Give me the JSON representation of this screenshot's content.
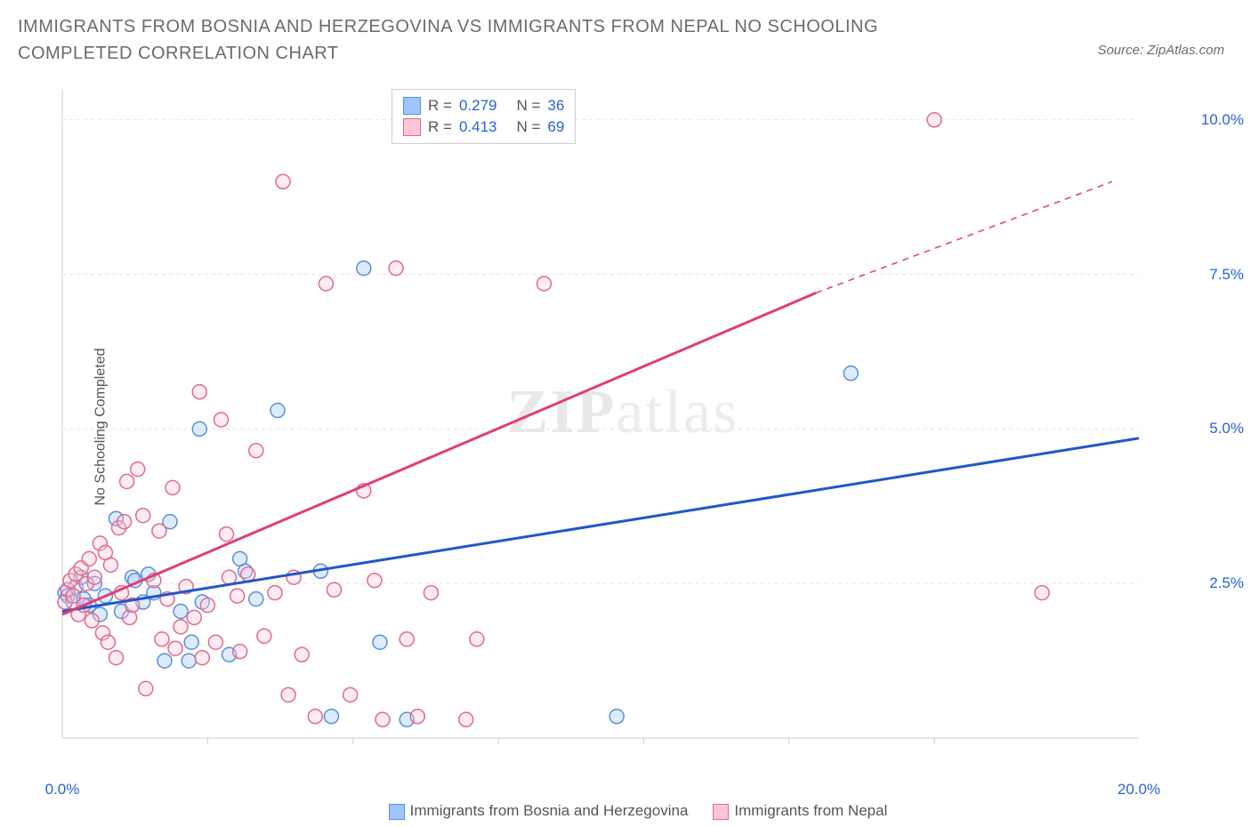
{
  "title": "IMMIGRANTS FROM BOSNIA AND HERZEGOVINA VS IMMIGRANTS FROM NEPAL NO SCHOOLING COMPLETED CORRELATION CHART",
  "source": "Source: ZipAtlas.com",
  "ylabel": "No Schooling Completed",
  "watermark_bold": "ZIP",
  "watermark_thin": "atlas",
  "chart": {
    "type": "scatter",
    "xlim": [
      0,
      20
    ],
    "ylim": [
      0,
      10.5
    ],
    "xticks": [
      {
        "v": 0,
        "l": "0.0%"
      },
      {
        "v": 20,
        "l": "20.0%"
      }
    ],
    "xminor": [
      2.7,
      5.4,
      8.1,
      10.8,
      13.5,
      16.2
    ],
    "yticks": [
      {
        "v": 2.5,
        "l": "2.5%"
      },
      {
        "v": 5.0,
        "l": "5.0%"
      },
      {
        "v": 7.5,
        "l": "7.5%"
      },
      {
        "v": 10.0,
        "l": "10.0%"
      }
    ],
    "grid_color": "#e5e5e5",
    "grid_dash": "4 4",
    "axis_color": "#cfcfcf",
    "plot_bg": "#ffffff",
    "marker_radius": 8,
    "marker_stroke_w": 1.5,
    "marker_fill_opacity": 0.35,
    "trend_w": 3,
    "series": [
      {
        "name": "Immigrants from Bosnia and Herzegovina",
        "fill": "#9ec5ff",
        "stroke": "#5b8fd6",
        "line": "#2156c9",
        "R": "0.279",
        "N": "36",
        "trend": {
          "x1": 0,
          "y1": 2.05,
          "x2": 20,
          "y2": 4.85,
          "dash": null
        },
        "pts": [
          [
            0.05,
            2.35
          ],
          [
            0.1,
            2.3
          ],
          [
            0.2,
            2.2
          ],
          [
            0.25,
            2.45
          ],
          [
            0.35,
            2.6
          ],
          [
            0.4,
            2.25
          ],
          [
            0.5,
            2.15
          ],
          [
            0.6,
            2.5
          ],
          [
            0.7,
            2.0
          ],
          [
            0.8,
            2.3
          ],
          [
            1.0,
            3.55
          ],
          [
            1.1,
            2.05
          ],
          [
            1.3,
            2.6
          ],
          [
            1.35,
            2.55
          ],
          [
            1.5,
            2.2
          ],
          [
            1.6,
            2.65
          ],
          [
            1.7,
            2.35
          ],
          [
            1.9,
            1.25
          ],
          [
            2.0,
            3.5
          ],
          [
            2.2,
            2.05
          ],
          [
            2.35,
            1.25
          ],
          [
            2.4,
            1.55
          ],
          [
            2.55,
            5.0
          ],
          [
            2.6,
            2.2
          ],
          [
            3.1,
            1.35
          ],
          [
            3.3,
            2.9
          ],
          [
            3.4,
            2.7
          ],
          [
            3.6,
            2.25
          ],
          [
            4.0,
            5.3
          ],
          [
            4.8,
            2.7
          ],
          [
            5.0,
            0.35
          ],
          [
            5.6,
            7.6
          ],
          [
            5.9,
            1.55
          ],
          [
            6.4,
            0.3
          ],
          [
            10.3,
            0.35
          ],
          [
            14.65,
            5.9
          ]
        ]
      },
      {
        "name": "Immigrants from Nepal",
        "fill": "#ffc6d8",
        "stroke": "#e06a8e",
        "line": "#e23e6d",
        "R": "0.413",
        "N": "69",
        "trend": {
          "x1": 0,
          "y1": 2.0,
          "x2": 14.0,
          "y2": 7.2,
          "dash": null
        },
        "trend_ext": {
          "x1": 14.0,
          "y1": 7.2,
          "x2": 19.5,
          "y2": 9.0,
          "dash": "7 6"
        },
        "pts": [
          [
            0.05,
            2.2
          ],
          [
            0.1,
            2.4
          ],
          [
            0.15,
            2.55
          ],
          [
            0.2,
            2.3
          ],
          [
            0.25,
            2.65
          ],
          [
            0.3,
            2.0
          ],
          [
            0.35,
            2.75
          ],
          [
            0.4,
            2.15
          ],
          [
            0.45,
            2.5
          ],
          [
            0.5,
            2.9
          ],
          [
            0.55,
            1.9
          ],
          [
            0.6,
            2.6
          ],
          [
            0.7,
            3.15
          ],
          [
            0.75,
            1.7
          ],
          [
            0.8,
            3.0
          ],
          [
            0.85,
            1.55
          ],
          [
            0.9,
            2.8
          ],
          [
            1.0,
            1.3
          ],
          [
            1.05,
            3.4
          ],
          [
            1.1,
            2.35
          ],
          [
            1.15,
            3.5
          ],
          [
            1.2,
            4.15
          ],
          [
            1.25,
            1.95
          ],
          [
            1.3,
            2.15
          ],
          [
            1.4,
            4.35
          ],
          [
            1.5,
            3.6
          ],
          [
            1.55,
            0.8
          ],
          [
            1.7,
            2.55
          ],
          [
            1.8,
            3.35
          ],
          [
            1.85,
            1.6
          ],
          [
            1.95,
            2.25
          ],
          [
            2.05,
            4.05
          ],
          [
            2.1,
            1.45
          ],
          [
            2.2,
            1.8
          ],
          [
            2.3,
            2.45
          ],
          [
            2.45,
            1.95
          ],
          [
            2.55,
            5.6
          ],
          [
            2.6,
            1.3
          ],
          [
            2.7,
            2.15
          ],
          [
            2.85,
            1.55
          ],
          [
            2.95,
            5.15
          ],
          [
            3.05,
            3.3
          ],
          [
            3.1,
            2.6
          ],
          [
            3.25,
            2.3
          ],
          [
            3.3,
            1.4
          ],
          [
            3.45,
            2.65
          ],
          [
            3.6,
            4.65
          ],
          [
            3.75,
            1.65
          ],
          [
            3.95,
            2.35
          ],
          [
            4.1,
            9.0
          ],
          [
            4.2,
            0.7
          ],
          [
            4.3,
            2.6
          ],
          [
            4.45,
            1.35
          ],
          [
            4.7,
            0.35
          ],
          [
            4.9,
            7.35
          ],
          [
            5.05,
            2.4
          ],
          [
            5.35,
            0.7
          ],
          [
            5.6,
            4.0
          ],
          [
            5.8,
            2.55
          ],
          [
            5.95,
            0.3
          ],
          [
            6.2,
            7.6
          ],
          [
            6.4,
            1.6
          ],
          [
            6.6,
            0.35
          ],
          [
            6.85,
            2.35
          ],
          [
            7.5,
            0.3
          ],
          [
            7.7,
            1.6
          ],
          [
            8.95,
            7.35
          ],
          [
            16.2,
            10.0
          ],
          [
            18.2,
            2.35
          ]
        ]
      }
    ]
  },
  "legend_bottom": [
    {
      "label": "Immigrants from Bosnia and Herzegovina",
      "fill": "#9ec5ff",
      "stroke": "#5b8fd6"
    },
    {
      "label": "Immigrants from Nepal",
      "fill": "#ffc6d8",
      "stroke": "#e06a8e"
    }
  ]
}
